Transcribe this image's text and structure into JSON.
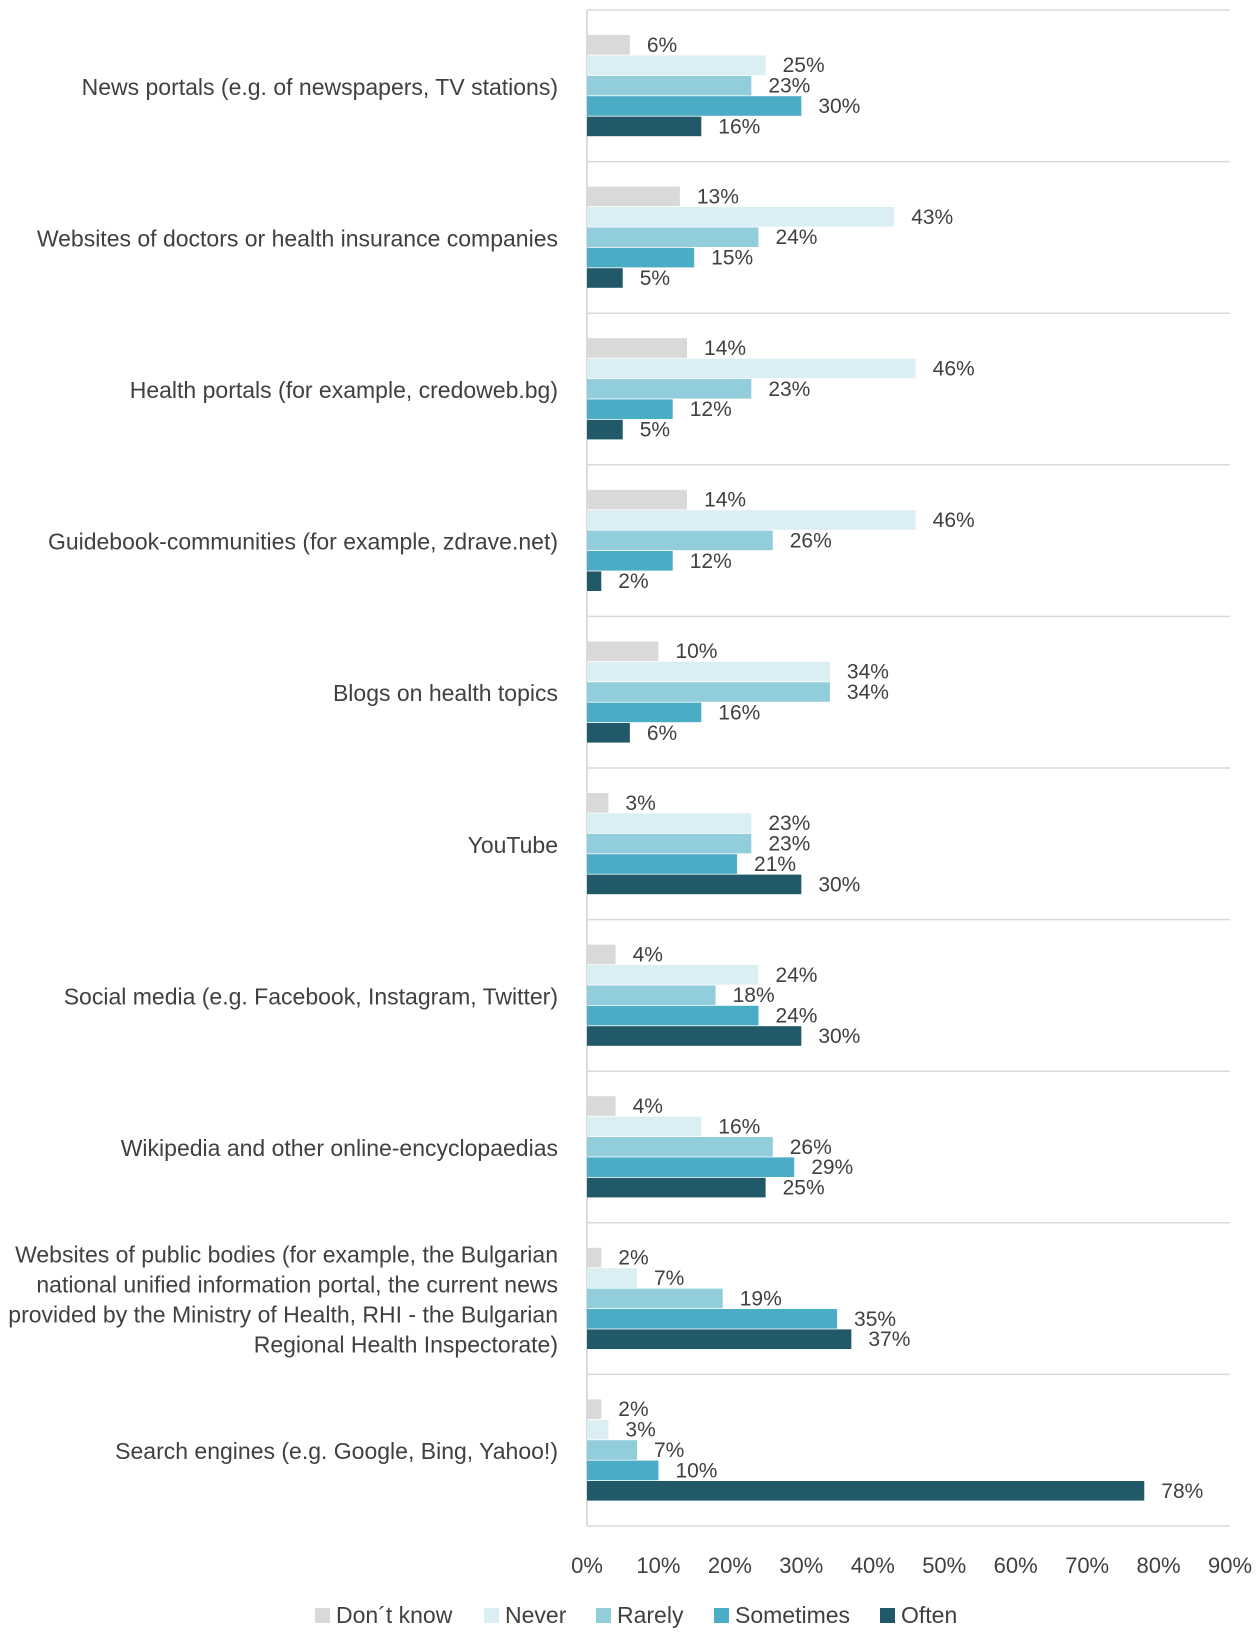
{
  "chart_data": {
    "type": "bar",
    "orientation": "horizontal",
    "title": "",
    "xlabel": "",
    "ylabel": "",
    "xlim": [
      0,
      90
    ],
    "xticks": [
      0,
      10,
      20,
      30,
      40,
      50,
      60,
      70,
      80,
      90
    ],
    "tick_suffix": "%",
    "grid": false,
    "legend_position": "bottom",
    "categories": [
      [
        "News portals (e.g. of newspapers, TV stations)"
      ],
      [
        "Websites of doctors or health insurance companies"
      ],
      [
        "Health portals (for example, credoweb.bg)"
      ],
      [
        "Guidebook-communities (for example, zdrave.net)"
      ],
      [
        "Blogs on health topics"
      ],
      [
        "YouTube"
      ],
      [
        "Social media (e.g. Facebook, Instagram, Twitter)"
      ],
      [
        "Wikipedia and other online-encyclopaedias"
      ],
      [
        "Websites of public bodies (for example, the Bulgarian",
        "national unified information portal, the current news",
        "provided by the Ministry of Health, RHI - the Bulgarian",
        "Regional Health Inspectorate)"
      ],
      [
        "Search engines (e.g. Google, Bing, Yahoo!)"
      ]
    ],
    "series": [
      {
        "name": "Don´t know",
        "color": "#d9d9d9",
        "values": [
          6,
          13,
          14,
          14,
          10,
          3,
          4,
          4,
          2,
          2
        ]
      },
      {
        "name": "Never",
        "color": "#daeef3",
        "values": [
          25,
          43,
          46,
          46,
          34,
          23,
          24,
          16,
          7,
          3
        ]
      },
      {
        "name": "Rarely",
        "color": "#92cddc",
        "values": [
          23,
          24,
          23,
          26,
          34,
          23,
          18,
          26,
          19,
          7
        ]
      },
      {
        "name": "Sometimes",
        "color": "#4bacc6",
        "values": [
          30,
          15,
          12,
          12,
          16,
          21,
          24,
          29,
          35,
          10
        ]
      },
      {
        "name": "Often",
        "color": "#215968",
        "values": [
          16,
          5,
          5,
          2,
          6,
          30,
          30,
          25,
          37,
          78
        ]
      }
    ]
  }
}
